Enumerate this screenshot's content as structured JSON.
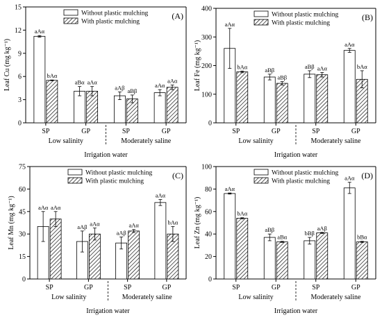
{
  "figure": {
    "series_labels": [
      "Without plastic mulching",
      "With plastic mulching"
    ],
    "colors": {
      "axis": "#000000",
      "bar_fill": "#ffffff",
      "hatch": "#000000"
    }
  },
  "chart_data": [
    {
      "type": "bar",
      "panel_label": "(A)",
      "ylabel": "Leaf Cu (mg kg⁻¹)",
      "xlabel": "Irrigation water",
      "groups": [
        "Low salinity",
        "Moderately saline"
      ],
      "categories": [
        "SP",
        "GP",
        "SP",
        "GP"
      ],
      "ylim": [
        0,
        15
      ],
      "yticks": [
        0,
        3,
        6,
        9,
        12,
        15
      ],
      "legend_position": "top-center",
      "series": [
        {
          "name": "Without plastic mulching",
          "values": [
            11.2,
            4.1,
            3.5,
            3.9
          ],
          "errors": [
            0.1,
            0.6,
            0.5,
            0.4
          ],
          "labels": [
            "aAα",
            "aBα",
            "aAβ",
            "aAα"
          ]
        },
        {
          "name": "With plastic mulching",
          "values": [
            5.5,
            4.1,
            3.1,
            4.6
          ],
          "errors": [
            0.05,
            0.6,
            0.5,
            0.3
          ],
          "labels": [
            "bAα",
            "aAα",
            "aBβ",
            "aAα"
          ]
        }
      ]
    },
    {
      "type": "bar",
      "panel_label": "(B)",
      "ylabel": "Leaf Fe (mg kg⁻¹)",
      "xlabel": "Irrigation water",
      "groups": [
        "Low salinity",
        "Moderately saline"
      ],
      "categories": [
        "SP",
        "GP",
        "SP",
        "GP"
      ],
      "ylim": [
        0,
        400
      ],
      "yticks": [
        0,
        100,
        200,
        300,
        400
      ],
      "legend_position": "top-center",
      "series": [
        {
          "name": "Without plastic mulching",
          "values": [
            260,
            160,
            170,
            253
          ],
          "errors": [
            70,
            10,
            12,
            7
          ],
          "labels": [
            "aAα",
            "aBβ",
            "aBβ",
            "aAα"
          ]
        },
        {
          "name": "With plastic mulching",
          "values": [
            178,
            138,
            168,
            152
          ],
          "errors": [
            3,
            6,
            8,
            30
          ],
          "labels": [
            "bAα",
            "aBβ",
            "aAα",
            "bAα"
          ]
        }
      ]
    },
    {
      "type": "bar",
      "panel_label": "(C)",
      "ylabel": "Leaf Mn (mg kg⁻¹)",
      "xlabel": "Irrigation water",
      "groups": [
        "Low salinity",
        "Moderately saline"
      ],
      "categories": [
        "SP",
        "GP",
        "SP",
        "GP"
      ],
      "ylim": [
        0,
        75
      ],
      "yticks": [
        0,
        15,
        30,
        45,
        60,
        75
      ],
      "legend_position": "top-center",
      "series": [
        {
          "name": "Without plastic mulching",
          "values": [
            35,
            25,
            24,
            51
          ],
          "errors": [
            10,
            7,
            4,
            2
          ],
          "labels": [
            "aAα",
            "aAβ",
            "aAβ",
            "aAα"
          ]
        },
        {
          "name": "With plastic mulching",
          "values": [
            40,
            30,
            32,
            30
          ],
          "errors": [
            5,
            4,
            1,
            5
          ],
          "labels": [
            "aAα",
            "aAα",
            "aAα",
            "bAα"
          ]
        }
      ]
    },
    {
      "type": "bar",
      "panel_label": "(D)",
      "ylabel": "Leaf Zn (mg kg⁻¹)",
      "xlabel": "Irrigation water",
      "groups": [
        "Low salinity",
        "Moderately saline"
      ],
      "categories": [
        "SP",
        "GP",
        "SP",
        "GP"
      ],
      "ylim": [
        0,
        100
      ],
      "yticks": [
        0,
        20,
        40,
        60,
        80,
        100
      ],
      "legend_position": "top-center",
      "series": [
        {
          "name": "Without plastic mulching",
          "values": [
            76,
            37,
            34,
            81
          ],
          "errors": [
            0.5,
            3,
            3,
            5
          ],
          "labels": [
            "aAα",
            "aBβ",
            "bBβ",
            "aAα"
          ]
        },
        {
          "name": "With plastic mulching",
          "values": [
            54,
            33,
            41,
            33
          ],
          "errors": [
            0.5,
            0.5,
            0.5,
            0.5
          ],
          "labels": [
            "bAα",
            "aBα",
            "aAβ",
            "bBα"
          ]
        }
      ]
    }
  ]
}
